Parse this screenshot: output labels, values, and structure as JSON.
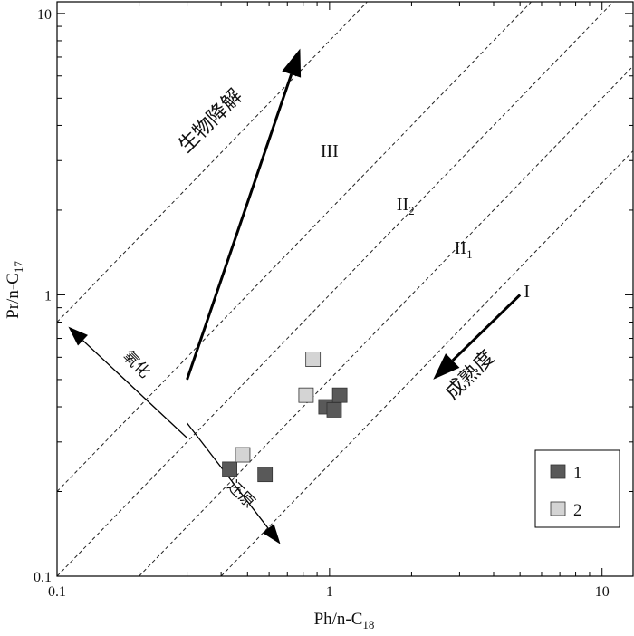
{
  "chart_data": {
    "type": "scatter",
    "xscale": "log",
    "yscale": "log",
    "xlim": [
      0.1,
      13
    ],
    "ylim": [
      0.1,
      11
    ],
    "xlabel": {
      "main": "Ph/n-C",
      "sub": "18"
    },
    "ylabel": {
      "main": "Pr/n-C",
      "sub": "17"
    },
    "x_ticks": [
      {
        "value": 0.1,
        "label": "0.1"
      },
      {
        "value": 1,
        "label": "1"
      },
      {
        "value": 10,
        "label": "10"
      }
    ],
    "y_ticks": [
      {
        "value": 0.1,
        "label": "0.1"
      },
      {
        "value": 1,
        "label": "1"
      },
      {
        "value": 10,
        "label": "10"
      }
    ],
    "grid": false,
    "legend_position": "bottom-right",
    "series": [
      {
        "name": "1",
        "color": "#595959",
        "points": [
          {
            "x": 0.43,
            "y": 0.24
          },
          {
            "x": 0.58,
            "y": 0.23
          },
          {
            "x": 0.97,
            "y": 0.4
          },
          {
            "x": 1.04,
            "y": 0.39
          },
          {
            "x": 1.09,
            "y": 0.44
          }
        ]
      },
      {
        "name": "2",
        "color": "#d4d4d4",
        "points": [
          {
            "x": 0.48,
            "y": 0.27
          },
          {
            "x": 0.82,
            "y": 0.44
          },
          {
            "x": 0.87,
            "y": 0.59
          }
        ]
      }
    ],
    "reference_lines": [
      {
        "note": "Pr/Ph = 8",
        "x1": 0.1,
        "x2": 13,
        "ratio": 8
      },
      {
        "note": "Pr/Ph = 2",
        "x1": 0.1,
        "x2": 13,
        "ratio": 2
      },
      {
        "note": "Pr/Ph = 1",
        "x1": 0.1,
        "x2": 13,
        "ratio": 1
      },
      {
        "note": "Pr/Ph = 0.5",
        "x1": 0.2,
        "x2": 13,
        "ratio": 0.5
      },
      {
        "note": "Pr/Ph = 0.25",
        "x1": 0.4,
        "x2": 13,
        "ratio": 0.25
      }
    ],
    "zone_labels": [
      {
        "text": "III",
        "sub": "",
        "x": 1.0,
        "y": 3.1
      },
      {
        "text": "II",
        "sub": "2",
        "x": 1.9,
        "y": 2.0
      },
      {
        "text": "II",
        "sub": "1",
        "x": 3.1,
        "y": 1.4
      },
      {
        "text": "I",
        "sub": "",
        "x": 5.3,
        "y": 0.98
      }
    ],
    "annotations": {
      "biodegradation": {
        "text": "生物降解",
        "arrow_from": [
          0.3,
          0.5
        ],
        "arrow_to": [
          0.78,
          7.5
        ],
        "label_at": [
          0.38,
          4.0
        ]
      },
      "maturity": {
        "text": "成熟度",
        "arrow_from": [
          5.0,
          1.0
        ],
        "arrow_to": [
          2.4,
          0.5
        ],
        "label_at": [
          3.4,
          0.5
        ]
      },
      "oxidation": {
        "text": "氧化",
        "arrow_from": [
          0.3,
          0.31
        ],
        "arrow_to": [
          0.11,
          0.77
        ],
        "label_at": [
          0.19,
          0.55
        ]
      },
      "reduction": {
        "text": "还原",
        "arrow_from": [
          0.3,
          0.35
        ],
        "arrow_to": [
          0.66,
          0.13
        ],
        "label_at": [
          0.46,
          0.19
        ]
      }
    }
  }
}
